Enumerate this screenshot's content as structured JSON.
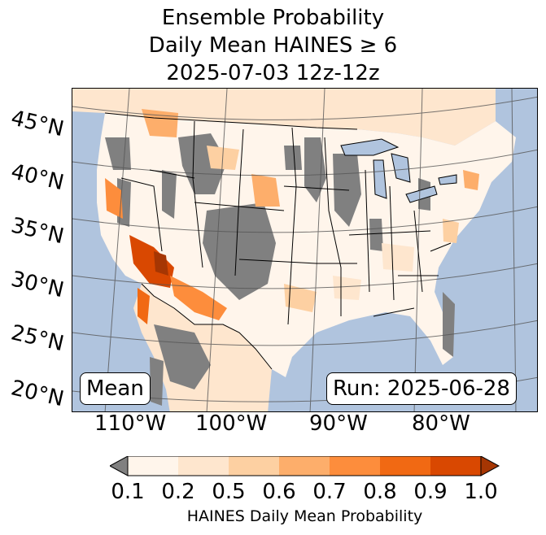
{
  "title": {
    "line1": "Ensemble Probability",
    "line2": "Daily Mean HAINES ≥ 6",
    "line3": "2025-07-03 12z-12z"
  },
  "map": {
    "lat_labels": [
      "45°N",
      "40°N",
      "35°N",
      "30°N",
      "25°N",
      "20°N"
    ],
    "lon_labels": [
      "110°W",
      "100°W",
      "90°W",
      "80°W"
    ],
    "mean_label": "Mean",
    "run_label": "Run: 2025-06-28",
    "colors": {
      "ocean": "#b0c4de",
      "no_data": "#808080",
      "land_low": "#fff5eb",
      "hotspot": "#d94801"
    }
  },
  "colorbar": {
    "label": "HAINES Daily Mean Probability",
    "ticks": [
      "0.1",
      "0.2",
      "0.5",
      "0.6",
      "0.7",
      "0.8",
      "0.9",
      "1.0"
    ],
    "colors": [
      "#fff5eb",
      "#fee6ce",
      "#fdd0a2",
      "#fdae6b",
      "#fd8d3c",
      "#f16913",
      "#d94801",
      "#a63603"
    ],
    "under_color": "#808080"
  }
}
